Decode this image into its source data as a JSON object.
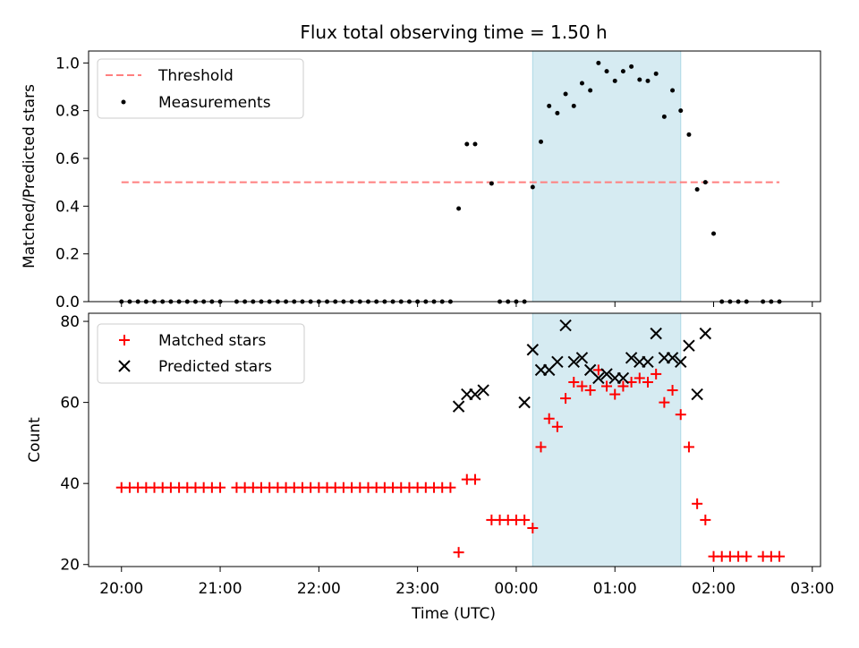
{
  "title": "Flux total observing time = 1.50 h",
  "xlabel": "Time (UTC)",
  "colors": {
    "threshold": "#ff7f7f",
    "measurements": "#000000",
    "matched": "#ff0000",
    "predicted": "#000000",
    "observing_span": "#add8e6"
  },
  "chart_data": [
    {
      "type": "scatter",
      "ylabel": "Matched/Predicted stars",
      "xlim": [
        "19:40",
        "03:05"
      ],
      "ylim": [
        0,
        1.05
      ],
      "yticks": [
        0.0,
        0.2,
        0.4,
        0.6,
        0.8,
        1.0
      ],
      "ytick_labels": [
        "0.0",
        "0.2",
        "0.4",
        "0.6",
        "0.8",
        "1.0"
      ],
      "grid": false,
      "legend": "top-left",
      "shaded_span": [
        "00:10",
        "01:40"
      ],
      "series": [
        {
          "name": "Threshold",
          "kind": "line",
          "style": "dashed",
          "x": [
            "20:00",
            "02:40"
          ],
          "y": [
            0.5,
            0.5
          ]
        },
        {
          "name": "Measurements",
          "kind": "points",
          "marker": "dot",
          "x": [
            "20:00",
            "20:05",
            "20:10",
            "20:15",
            "20:20",
            "20:25",
            "20:30",
            "20:35",
            "20:40",
            "20:45",
            "20:50",
            "20:55",
            "21:00",
            "21:10",
            "21:15",
            "21:20",
            "21:25",
            "21:30",
            "21:35",
            "21:40",
            "21:45",
            "21:50",
            "21:55",
            "22:00",
            "22:05",
            "22:10",
            "22:15",
            "22:20",
            "22:25",
            "22:30",
            "22:35",
            "22:40",
            "22:45",
            "22:50",
            "22:55",
            "23:00",
            "23:05",
            "23:10",
            "23:15",
            "23:20",
            "23:25",
            "23:30",
            "23:35",
            "23:45",
            "23:50",
            "23:55",
            "00:00",
            "00:05",
            "00:10",
            "00:15",
            "00:20",
            "00:25",
            "00:30",
            "00:35",
            "00:40",
            "00:45",
            "00:50",
            "00:55",
            "01:00",
            "01:05",
            "01:10",
            "01:15",
            "01:20",
            "01:25",
            "01:30",
            "01:35",
            "01:40",
            "01:45",
            "01:50",
            "01:55",
            "02:00",
            "02:05",
            "02:10",
            "02:15",
            "02:20",
            "02:30",
            "02:35",
            "02:40"
          ],
          "y": [
            0,
            0,
            0,
            0,
            0,
            0,
            0,
            0,
            0,
            0,
            0,
            0,
            0,
            0,
            0,
            0,
            0,
            0,
            0,
            0,
            0,
            0,
            0,
            0,
            0,
            0,
            0,
            0,
            0,
            0,
            0,
            0,
            0,
            0,
            0,
            0,
            0,
            0,
            0,
            0,
            0.39,
            0.66,
            0.66,
            0.495,
            0,
            0,
            0,
            0,
            0.48,
            0.67,
            0.82,
            0.79,
            0.87,
            0.82,
            0.915,
            0.885,
            1.0,
            0.965,
            0.925,
            0.965,
            0.985,
            0.93,
            0.925,
            0.955,
            0.775,
            0.885,
            0.8,
            0.7,
            0.47,
            0.5,
            0.285,
            0,
            0,
            0,
            0,
            0,
            0,
            0
          ]
        }
      ]
    },
    {
      "type": "scatter",
      "ylabel": "Count",
      "xlim": [
        "19:40",
        "03:05"
      ],
      "ylim": [
        19.5,
        82
      ],
      "yticks": [
        20,
        40,
        60,
        80
      ],
      "ytick_labels": [
        "20",
        "40",
        "60",
        "80"
      ],
      "xticks": [
        "20:00",
        "21:00",
        "22:00",
        "23:00",
        "00:00",
        "01:00",
        "02:00",
        "03:00"
      ],
      "xtick_labels": [
        "20:00",
        "21:00",
        "22:00",
        "23:00",
        "00:00",
        "01:00",
        "02:00",
        "03:00"
      ],
      "grid": false,
      "legend": "top-left",
      "shaded_span": [
        "00:10",
        "01:40"
      ],
      "series": [
        {
          "name": "Matched stars",
          "kind": "points",
          "marker": "plus",
          "x": [
            "20:00",
            "20:05",
            "20:10",
            "20:15",
            "20:20",
            "20:25",
            "20:30",
            "20:35",
            "20:40",
            "20:45",
            "20:50",
            "20:55",
            "21:00",
            "21:10",
            "21:15",
            "21:20",
            "21:25",
            "21:30",
            "21:35",
            "21:40",
            "21:45",
            "21:50",
            "21:55",
            "22:00",
            "22:05",
            "22:10",
            "22:15",
            "22:20",
            "22:25",
            "22:30",
            "22:35",
            "22:40",
            "22:45",
            "22:50",
            "22:55",
            "23:00",
            "23:05",
            "23:10",
            "23:15",
            "23:20",
            "23:25",
            "23:30",
            "23:35",
            "23:45",
            "23:50",
            "23:55",
            "00:00",
            "00:05",
            "00:10",
            "00:15",
            "00:20",
            "00:25",
            "00:30",
            "00:35",
            "00:40",
            "00:45",
            "00:50",
            "00:55",
            "01:00",
            "01:05",
            "01:10",
            "01:15",
            "01:20",
            "01:25",
            "01:30",
            "01:35",
            "01:40",
            "01:45",
            "01:50",
            "01:55",
            "02:00",
            "02:05",
            "02:10",
            "02:15",
            "02:20",
            "02:30",
            "02:35",
            "02:40"
          ],
          "y": [
            39,
            39,
            39,
            39,
            39,
            39,
            39,
            39,
            39,
            39,
            39,
            39,
            39,
            39,
            39,
            39,
            39,
            39,
            39,
            39,
            39,
            39,
            39,
            39,
            39,
            39,
            39,
            39,
            39,
            39,
            39,
            39,
            39,
            39,
            39,
            39,
            39,
            39,
            39,
            39,
            23,
            41,
            41,
            31,
            31,
            31,
            31,
            31,
            29,
            49,
            56,
            54,
            61,
            65,
            64,
            63,
            68,
            64,
            62,
            64,
            65,
            66,
            65,
            67,
            60,
            63,
            57,
            49,
            35,
            31,
            22,
            22,
            22,
            22,
            22,
            22,
            22,
            22
          ]
        },
        {
          "name": "Predicted stars",
          "kind": "points",
          "marker": "x",
          "x": [
            "23:25",
            "23:30",
            "23:35",
            "23:40",
            "00:05",
            "00:10",
            "00:15",
            "00:20",
            "00:25",
            "00:30",
            "00:35",
            "00:40",
            "00:45",
            "00:50",
            "00:55",
            "01:00",
            "01:05",
            "01:10",
            "01:15",
            "01:20",
            "01:25",
            "01:30",
            "01:35",
            "01:40",
            "01:45",
            "01:50",
            "01:55"
          ],
          "y": [
            59,
            62,
            62,
            63,
            60,
            73,
            68,
            68,
            70,
            79,
            70,
            71,
            68,
            66,
            67,
            66,
            66,
            71,
            70,
            70,
            77,
            71,
            71,
            70,
            74,
            62,
            77
          ]
        }
      ]
    }
  ]
}
